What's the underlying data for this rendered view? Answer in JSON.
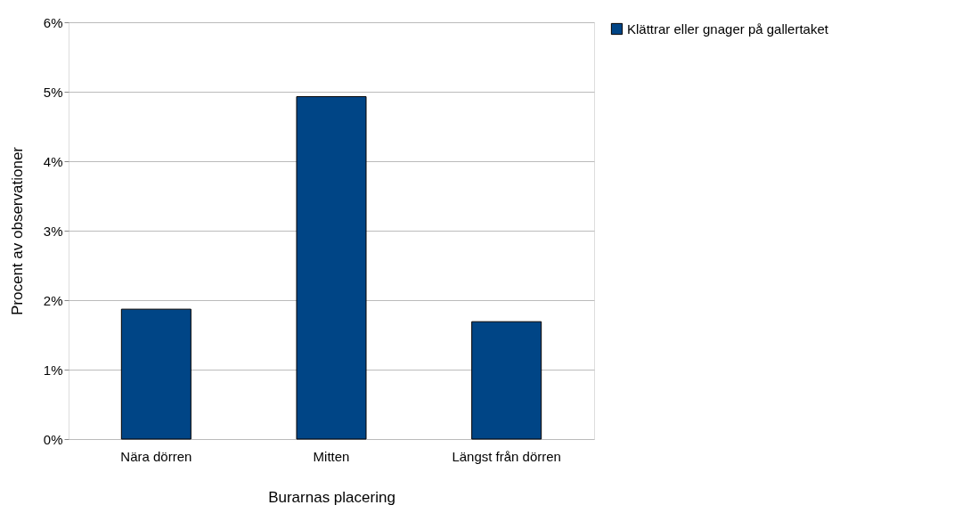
{
  "chart_data": {
    "type": "bar",
    "xlabel": "Burarnas placering",
    "ylabel": "Procent av observationer",
    "categories": [
      "Nära dörren",
      "Mitten",
      "Längst från dörren"
    ],
    "series": [
      {
        "name": "Klättrar eller gnager på gallertaket",
        "color": "#004586",
        "values": [
          1.87,
          4.93,
          1.69
        ]
      }
    ],
    "ylim": [
      0,
      6
    ],
    "yticks": [
      {
        "value": 0,
        "label": "0%"
      },
      {
        "value": 1,
        "label": "1%"
      },
      {
        "value": 2,
        "label": "2%"
      },
      {
        "value": 3,
        "label": "3%"
      },
      {
        "value": 4,
        "label": "4%"
      },
      {
        "value": 5,
        "label": "5%"
      },
      {
        "value": 6,
        "label": "6%"
      }
    ],
    "grid": "y",
    "legend": "right"
  }
}
